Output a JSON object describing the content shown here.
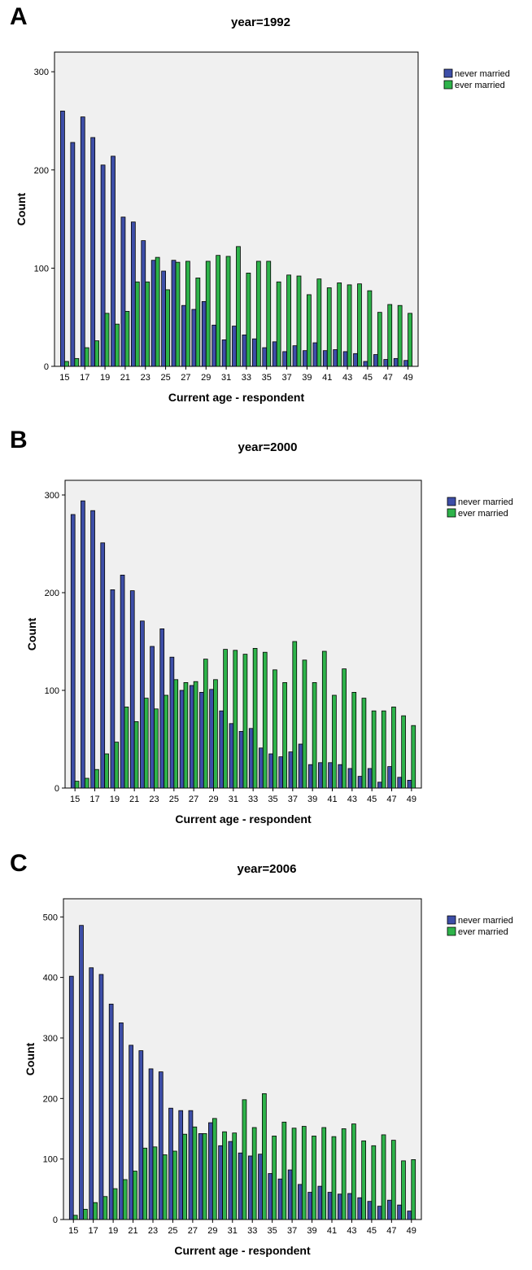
{
  "panels": [
    {
      "letter": "A"
    },
    {
      "letter": "B"
    },
    {
      "letter": "C"
    }
  ],
  "colors": {
    "never_married": "#3d4ea8",
    "ever_married": "#2eb34a",
    "plot_background": "#f0f0f0"
  },
  "chart_data": [
    {
      "type": "bar",
      "title": "year=1992",
      "xlabel": "Current age - respondent",
      "ylabel": "Count",
      "categories": [
        15,
        16,
        17,
        18,
        19,
        20,
        21,
        22,
        23,
        24,
        25,
        26,
        27,
        28,
        29,
        30,
        31,
        32,
        33,
        34,
        35,
        36,
        37,
        38,
        39,
        40,
        41,
        42,
        43,
        44,
        45,
        46,
        47,
        48,
        49
      ],
      "xtick_labels": [
        "15",
        "17",
        "19",
        "21",
        "23",
        "25",
        "27",
        "29",
        "31",
        "33",
        "35",
        "37",
        "39",
        "41",
        "43",
        "45",
        "47",
        "49"
      ],
      "yticks": [
        0,
        100,
        200,
        300
      ],
      "ylim": [
        0,
        320
      ],
      "legend_position": "top-right",
      "series": [
        {
          "name": "never married",
          "values": [
            260,
            228,
            254,
            233,
            205,
            214,
            152,
            147,
            128,
            108,
            97,
            108,
            62,
            58,
            66,
            42,
            27,
            41,
            32,
            28,
            19,
            25,
            15,
            21,
            16,
            24,
            16,
            17,
            15,
            13,
            5,
            12,
            7,
            8,
            6
          ]
        },
        {
          "name": "ever married",
          "values": [
            5,
            8,
            19,
            26,
            54,
            43,
            56,
            86,
            86,
            111,
            78,
            106,
            107,
            90,
            107,
            113,
            112,
            122,
            95,
            107,
            107,
            86,
            93,
            92,
            73,
            89,
            80,
            85,
            83,
            84,
            77,
            55,
            63,
            62,
            54
          ]
        }
      ]
    },
    {
      "type": "bar",
      "title": "year=2000",
      "xlabel": "Current age - respondent",
      "ylabel": "Count",
      "categories": [
        15,
        16,
        17,
        18,
        19,
        20,
        21,
        22,
        23,
        24,
        25,
        26,
        27,
        28,
        29,
        30,
        31,
        32,
        33,
        34,
        35,
        36,
        37,
        38,
        39,
        40,
        41,
        42,
        43,
        44,
        45,
        46,
        47,
        48,
        49
      ],
      "xtick_labels": [
        "15",
        "17",
        "19",
        "21",
        "23",
        "25",
        "27",
        "29",
        "31",
        "33",
        "35",
        "37",
        "39",
        "41",
        "43",
        "45",
        "47",
        "49"
      ],
      "yticks": [
        0,
        100,
        200,
        300
      ],
      "ylim": [
        0,
        315
      ],
      "legend_position": "top-right",
      "series": [
        {
          "name": "never married",
          "values": [
            280,
            294,
            284,
            251,
            203,
            218,
            202,
            171,
            145,
            163,
            134,
            100,
            105,
            98,
            101,
            79,
            66,
            58,
            61,
            41,
            35,
            32,
            37,
            45,
            24,
            26,
            26,
            24,
            20,
            12,
            20,
            6,
            22,
            11,
            8
          ]
        },
        {
          "name": "ever married",
          "values": [
            7,
            10,
            19,
            35,
            47,
            83,
            68,
            92,
            81,
            95,
            111,
            108,
            109,
            132,
            111,
            142,
            141,
            137,
            143,
            139,
            121,
            108,
            150,
            131,
            108,
            140,
            95,
            122,
            98,
            92,
            79,
            79,
            83,
            74,
            64
          ]
        }
      ]
    },
    {
      "type": "bar",
      "title": "year=2006",
      "xlabel": "Current age - respondent",
      "ylabel": "Count",
      "categories": [
        15,
        16,
        17,
        18,
        19,
        20,
        21,
        22,
        23,
        24,
        25,
        26,
        27,
        28,
        29,
        30,
        31,
        32,
        33,
        34,
        35,
        36,
        37,
        38,
        39,
        40,
        41,
        42,
        43,
        44,
        45,
        46,
        47,
        48,
        49
      ],
      "xtick_labels": [
        "15",
        "17",
        "19",
        "21",
        "23",
        "25",
        "27",
        "29",
        "31",
        "33",
        "35",
        "37",
        "39",
        "41",
        "43",
        "45",
        "47",
        "49"
      ],
      "yticks": [
        0,
        100,
        200,
        300,
        400,
        500
      ],
      "ylim": [
        0,
        530
      ],
      "legend_position": "top-right",
      "series": [
        {
          "name": "never married",
          "values": [
            402,
            486,
            416,
            405,
            356,
            325,
            288,
            279,
            249,
            244,
            184,
            180,
            180,
            142,
            160,
            122,
            129,
            110,
            105,
            108,
            76,
            67,
            82,
            58,
            45,
            55,
            45,
            42,
            43,
            36,
            30,
            22,
            32,
            24,
            14
          ]
        },
        {
          "name": "ever married",
          "values": [
            7,
            17,
            28,
            38,
            51,
            66,
            80,
            118,
            120,
            107,
            113,
            141,
            153,
            142,
            167,
            145,
            143,
            198,
            152,
            208,
            138,
            161,
            151,
            154,
            138,
            152,
            137,
            150,
            158,
            130,
            122,
            140,
            131,
            97,
            99
          ]
        }
      ]
    }
  ]
}
